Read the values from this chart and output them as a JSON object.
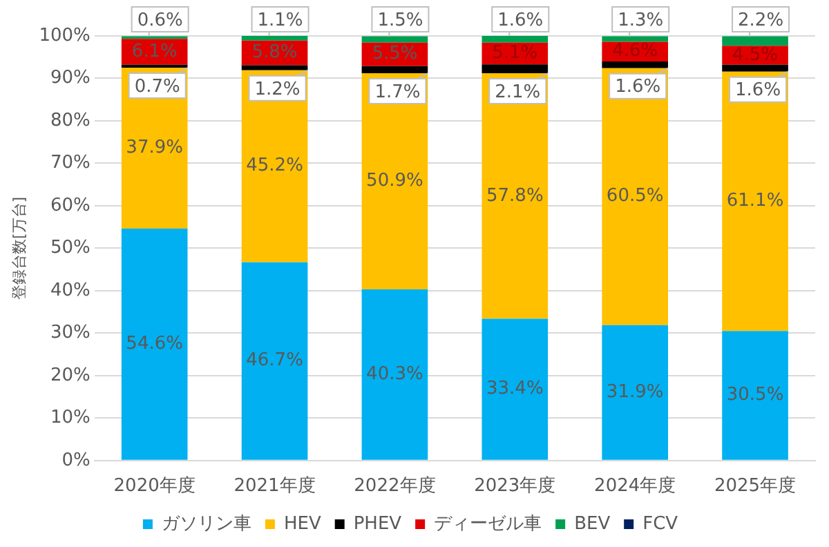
{
  "chart_data": {
    "type": "bar",
    "stacked": true,
    "ylabel": "登録台数[万台]",
    "categories": [
      "2020年度",
      "2021年度",
      "2022年度",
      "2023年度",
      "2024年度",
      "2025年度"
    ],
    "ylim": [
      0,
      100
    ],
    "yticks": [
      {
        "value": 0,
        "label": "0%"
      },
      {
        "value": 10,
        "label": "10%"
      },
      {
        "value": 20,
        "label": "20%"
      },
      {
        "value": 30,
        "label": "30%"
      },
      {
        "value": 40,
        "label": "40%"
      },
      {
        "value": 50,
        "label": "50%"
      },
      {
        "value": 60,
        "label": "60%"
      },
      {
        "value": 70,
        "label": "70%"
      },
      {
        "value": 80,
        "label": "80%"
      },
      {
        "value": 90,
        "label": "90%"
      },
      {
        "value": 100,
        "label": "100%"
      }
    ],
    "grid": "y",
    "legend": "bottom",
    "series": [
      {
        "name": "ガソリン車",
        "color": "#00b0f0",
        "values": [
          54.6,
          46.7,
          40.3,
          33.4,
          31.9,
          30.5
        ],
        "value_labels": [
          "54.6%",
          "46.7%",
          "40.3%",
          "33.4%",
          "31.9%",
          "30.5%"
        ]
      },
      {
        "name": "HEV",
        "color": "#ffc000",
        "values": [
          37.9,
          45.2,
          50.9,
          57.8,
          60.5,
          61.1
        ],
        "value_labels": [
          "37.9%",
          "45.2%",
          "50.9%",
          "57.8%",
          "60.5%",
          "61.1%"
        ]
      },
      {
        "name": "PHEV",
        "color": "#000000",
        "values": [
          0.7,
          1.2,
          1.7,
          2.1,
          1.6,
          1.6
        ],
        "value_labels": [
          "0.7%",
          "1.2%",
          "1.7%",
          "2.1%",
          "1.6%",
          "1.6%"
        ]
      },
      {
        "name": "ディーゼル車",
        "color": "#e00000",
        "values": [
          6.1,
          5.8,
          5.5,
          5.1,
          4.6,
          4.5
        ],
        "value_labels": [
          "6.1%",
          "5.8%",
          "5.5%",
          "5.1%",
          "4.6%",
          "4.5%"
        ]
      },
      {
        "name": "BEV",
        "color": "#00a050",
        "values": [
          0.6,
          1.1,
          1.5,
          1.6,
          1.3,
          2.2
        ],
        "value_labels": [
          "0.6%",
          "1.1%",
          "1.5%",
          "1.6%",
          "1.3%",
          "2.2%"
        ]
      },
      {
        "name": "FCV",
        "color": "#002060",
        "values": [
          null,
          null,
          null,
          null,
          null,
          null
        ],
        "value_labels": [
          null,
          null,
          null,
          null,
          null,
          null
        ]
      }
    ]
  }
}
